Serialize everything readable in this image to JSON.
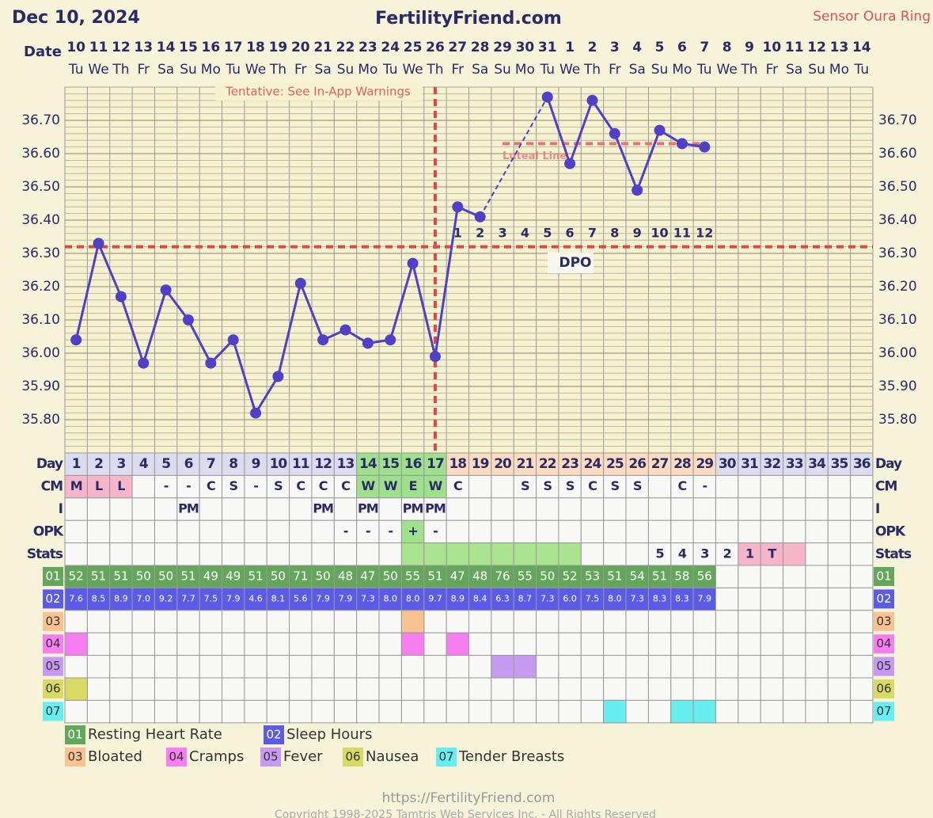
{
  "header": {
    "date": "Dec 10, 2024",
    "site": "FertilityFriend.com",
    "sensor": "Sensor Oura Ring"
  },
  "chart_data": {
    "type": "line",
    "date_label": "Date",
    "dates": [
      10,
      11,
      12,
      13,
      14,
      15,
      16,
      17,
      18,
      19,
      20,
      21,
      22,
      23,
      24,
      25,
      26,
      27,
      28,
      29,
      30,
      31,
      1,
      2,
      3,
      4,
      5,
      6,
      7,
      8,
      9,
      10,
      11,
      12,
      13,
      14
    ],
    "weekdays": [
      "Tu",
      "We",
      "Th",
      "Fr",
      "Sa",
      "Su",
      "Mo",
      "Tu",
      "We",
      "Th",
      "Fr",
      "Sa",
      "Su",
      "Mo",
      "Tu",
      "We",
      "Th",
      "Fr",
      "Sa",
      "Su",
      "Mo",
      "Tu",
      "We",
      "Th",
      "Fr",
      "Sa",
      "Su",
      "Mo",
      "Tu",
      "We",
      "Th",
      "Fr",
      "Sa",
      "Su",
      "Mo",
      "Tu"
    ],
    "annotation": "Tentative: See In-App Warnings",
    "day_label": "Day",
    "categories": [
      1,
      2,
      3,
      4,
      5,
      6,
      7,
      8,
      9,
      10,
      11,
      12,
      13,
      14,
      15,
      16,
      17,
      18,
      19,
      20,
      21,
      22,
      23,
      24,
      25,
      26,
      27,
      28,
      29,
      30,
      31,
      32,
      33,
      34,
      35,
      36
    ],
    "values": [
      36.04,
      36.33,
      36.17,
      35.97,
      36.19,
      36.1,
      35.97,
      36.04,
      35.82,
      35.93,
      36.21,
      36.04,
      36.07,
      36.03,
      36.04,
      36.27,
      35.99,
      36.44,
      36.41,
      null,
      null,
      36.77,
      36.57,
      36.76,
      36.66,
      36.49,
      36.67,
      36.63,
      36.62,
      null,
      null,
      null,
      null,
      null,
      null,
      null
    ],
    "color": "#5040c8",
    "ylim": [
      35.7,
      36.8
    ],
    "yticks": [
      {
        "value": 35.8,
        "label": "35.80"
      },
      {
        "value": 35.9,
        "label": "35.90"
      },
      {
        "value": 36.0,
        "label": "36.00"
      },
      {
        "value": 36.1,
        "label": "36.10"
      },
      {
        "value": 36.2,
        "label": "36.20"
      },
      {
        "value": 36.3,
        "label": "36.30"
      },
      {
        "value": 36.4,
        "label": "36.40"
      },
      {
        "value": 36.5,
        "label": "36.50"
      },
      {
        "value": 36.6,
        "label": "36.60"
      },
      {
        "value": 36.7,
        "label": "36.70"
      }
    ],
    "grid": true,
    "coverline": 36.32,
    "ovulation_day": 17,
    "luteal_line": {
      "label": "Luteal Line",
      "value": 36.63,
      "days": [
        20,
        29
      ]
    },
    "dpo": {
      "label": "DPO",
      "values": [
        null,
        null,
        null,
        null,
        null,
        null,
        null,
        null,
        null,
        null,
        null,
        null,
        null,
        null,
        null,
        null,
        null,
        1,
        2,
        3,
        4,
        5,
        6,
        7,
        8,
        9,
        10,
        11,
        12,
        null,
        null,
        null,
        null,
        null,
        null,
        null
      ]
    },
    "rows": [
      {
        "label": "CM",
        "values": [
          "M",
          "L",
          "L",
          null,
          "-",
          "-",
          "C",
          "S",
          "-",
          "S",
          "C",
          "C",
          "C",
          "W",
          "W",
          "E",
          "W",
          "C",
          null,
          null,
          "S",
          "S",
          "S",
          "C",
          "S",
          "S",
          null,
          "C",
          "-",
          null,
          null,
          null,
          null,
          null,
          null,
          null
        ]
      },
      {
        "label": "I",
        "values": [
          null,
          null,
          null,
          null,
          null,
          "PM",
          null,
          null,
          null,
          null,
          null,
          "PM",
          null,
          "PM",
          null,
          "PM",
          "PM",
          null,
          null,
          null,
          null,
          null,
          null,
          null,
          null,
          null,
          null,
          null,
          null,
          null,
          null,
          null,
          null,
          null,
          null,
          null
        ]
      },
      {
        "label": "OPK",
        "values": [
          null,
          null,
          null,
          null,
          null,
          null,
          null,
          null,
          null,
          null,
          null,
          null,
          "-",
          "-",
          "-",
          "+",
          "-",
          null,
          null,
          null,
          null,
          null,
          null,
          null,
          null,
          null,
          null,
          null,
          null,
          null,
          null,
          null,
          null,
          null,
          null,
          null
        ]
      },
      {
        "label": "Stats",
        "values": [
          null,
          null,
          null,
          null,
          null,
          null,
          null,
          null,
          null,
          null,
          null,
          null,
          null,
          null,
          null,
          null,
          null,
          null,
          null,
          null,
          null,
          null,
          null,
          null,
          null,
          null,
          5,
          4,
          3,
          2,
          1,
          "T",
          null,
          null,
          null,
          null
        ]
      }
    ],
    "sensors": [
      {
        "code": "01",
        "name": "Resting Heart Rate",
        "color": "#64a65c",
        "values": [
          52,
          51,
          51,
          50,
          50,
          51,
          49,
          49,
          51,
          50,
          71,
          50,
          48,
          47,
          50,
          55,
          51,
          47,
          48,
          76,
          55,
          50,
          52,
          53,
          51,
          54,
          51,
          58,
          56,
          null,
          null,
          null,
          null,
          null,
          null,
          null
        ]
      },
      {
        "code": "02",
        "name": "Sleep Hours",
        "color": "#5b5be8",
        "values": [
          7.6,
          8.5,
          8.9,
          7.0,
          9.2,
          7.7,
          7.5,
          7.9,
          4.6,
          8.1,
          5.6,
          7.9,
          7.9,
          7.3,
          8.0,
          8.0,
          9.7,
          8.9,
          8.4,
          6.3,
          8.7,
          7.3,
          6.0,
          7.5,
          8.0,
          7.3,
          8.3,
          8.3,
          7.9,
          null,
          null,
          null,
          null,
          null,
          null,
          null
        ],
        "value_labels": [
          "7.6",
          "8.5",
          "8.9",
          "7.0",
          "9.2",
          "7.7",
          "7.5",
          "7.9",
          "4.6",
          "8.1",
          "5.6",
          "7.9",
          "7.9",
          "7.3",
          "8.0",
          "8.0",
          "9.7",
          "8.9",
          "8.4",
          "6.3",
          "8.7",
          "7.3",
          "6.0",
          "7.5",
          "8.0",
          "7.3",
          "8.3",
          "8.3",
          "7.9",
          null,
          null,
          null,
          null,
          null,
          null,
          null
        ]
      }
    ],
    "symptoms": [
      {
        "code": "03",
        "name": "Bloated",
        "color": "#f9c291",
        "days": [
          16
        ]
      },
      {
        "code": "04",
        "name": "Cramps",
        "color": "#f77ef0",
        "days": [
          1,
          16,
          18
        ]
      },
      {
        "code": "05",
        "name": "Fever",
        "color": "#c79af2",
        "days": [
          20,
          21
        ]
      },
      {
        "code": "06",
        "name": "Nausea",
        "color": "#d9d966",
        "days": [
          1
        ]
      },
      {
        "code": "07",
        "name": "Tender Breasts",
        "color": "#66eef0",
        "days": [
          25,
          28,
          29
        ]
      }
    ]
  },
  "footer": {
    "url": "https://FertilityFriend.com",
    "copyright": "Copyright 1998-2025 Tamtris Web Services Inc. - All Rights Reserved"
  }
}
